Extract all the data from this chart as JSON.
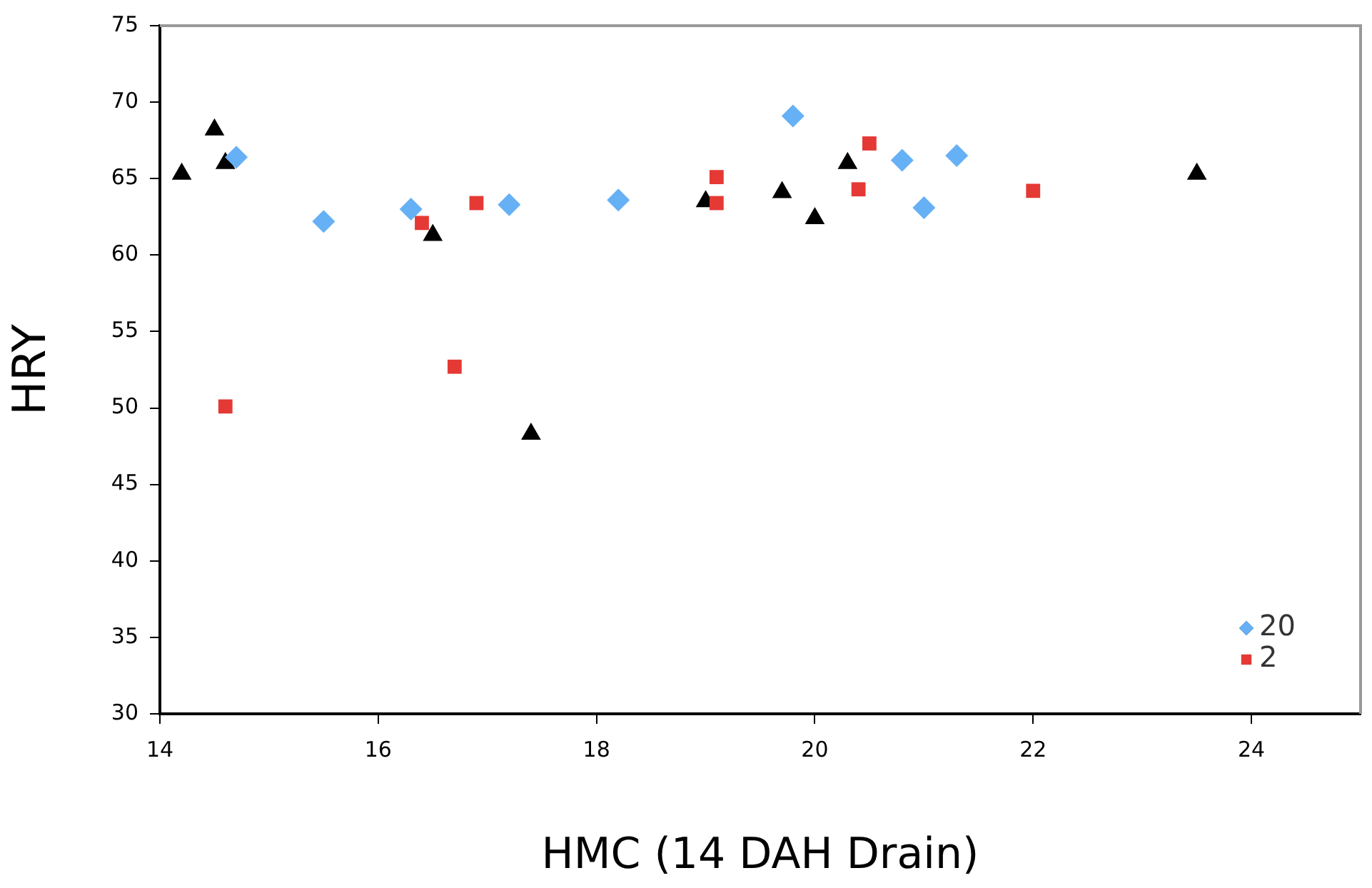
{
  "chart_data": {
    "type": "scatter",
    "xlabel": "HMC (14 DAH Drain)",
    "ylabel": "HRY",
    "xlim": [
      14,
      25
    ],
    "xticks": [
      14,
      16,
      18,
      20,
      22,
      24
    ],
    "ylim": [
      30,
      75
    ],
    "yticks": [
      30,
      35,
      40,
      45,
      50,
      55,
      60,
      65,
      70,
      75
    ],
    "grid": false,
    "legend": "bottom right",
    "series": [
      {
        "name": "20",
        "color": "#66b0f5",
        "marker": "diamond",
        "x": [
          14.7,
          15.5,
          16.3,
          17.2,
          18.2,
          19.8,
          20.8,
          21.3,
          21.0
        ],
        "values": [
          66.4,
          62.2,
          63.0,
          63.3,
          63.6,
          69.1,
          66.2,
          66.5,
          63.1
        ]
      },
      {
        "name": "2",
        "color": "#e53935",
        "marker": "square",
        "x": [
          14.6,
          16.4,
          16.9,
          16.7,
          19.1,
          19.1,
          20.5,
          20.4,
          22.0
        ],
        "values": [
          50.1,
          62.1,
          63.4,
          52.7,
          65.1,
          63.4,
          67.3,
          64.3,
          64.2
        ]
      },
      {
        "color": "#000000",
        "marker": "triangle",
        "x": [
          14.2,
          14.5,
          14.6,
          16.5,
          17.4,
          19.0,
          19.7,
          20.0,
          20.3,
          23.5
        ],
        "values": [
          65.3,
          68.2,
          66.0,
          61.3,
          48.3,
          63.5,
          64.1,
          62.4,
          66.0,
          65.3
        ]
      }
    ]
  }
}
